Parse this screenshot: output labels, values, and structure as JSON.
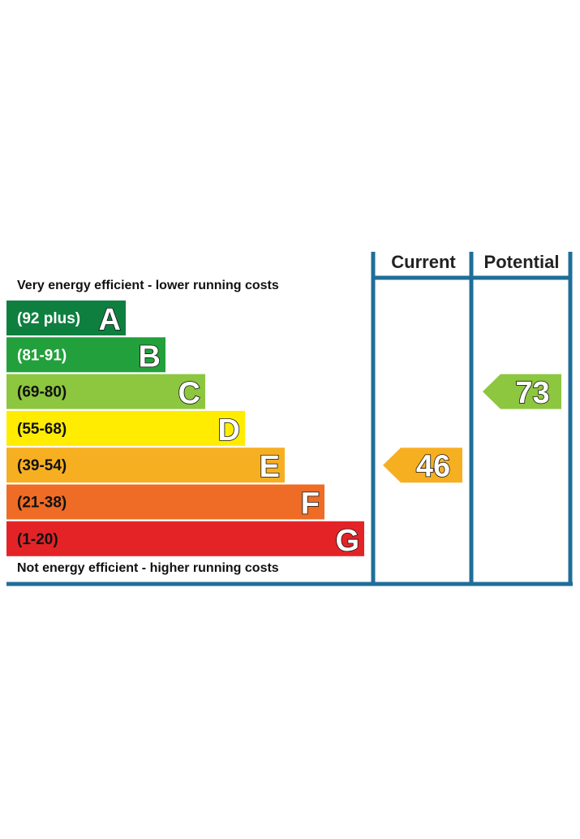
{
  "chart_data": {
    "type": "bar",
    "top_caption": "Very energy efficient - lower running costs",
    "bottom_caption": "Not energy efficient - higher running costs",
    "columns": {
      "current": "Current",
      "potential": "Potential"
    },
    "bands": [
      {
        "letter": "A",
        "range": "(92 plus)",
        "min": 92,
        "max": 100,
        "color": "#0f7f3f",
        "range_text_color": "#ffffff"
      },
      {
        "letter": "B",
        "range": "(81-91)",
        "min": 81,
        "max": 91,
        "color": "#22a03b",
        "range_text_color": "#ffffff"
      },
      {
        "letter": "C",
        "range": "(69-80)",
        "min": 69,
        "max": 80,
        "color": "#8dc63f",
        "range_text_color": "#111111"
      },
      {
        "letter": "D",
        "range": "(55-68)",
        "min": 55,
        "max": 68,
        "color": "#ffec00",
        "range_text_color": "#111111"
      },
      {
        "letter": "E",
        "range": "(39-54)",
        "min": 39,
        "max": 54,
        "color": "#f7af22",
        "range_text_color": "#111111"
      },
      {
        "letter": "F",
        "range": "(21-38)",
        "min": 21,
        "max": 38,
        "color": "#ee6c25",
        "range_text_color": "#111111"
      },
      {
        "letter": "G",
        "range": "(1-20)",
        "min": 1,
        "max": 20,
        "color": "#e42327",
        "range_text_color": "#111111"
      }
    ],
    "ratings": [
      {
        "name": "Current",
        "value": 46,
        "band": "E",
        "color": "#f7af22"
      },
      {
        "name": "Potential",
        "value": 73,
        "band": "C",
        "color": "#8dc63f"
      }
    ],
    "frame_color": "#1f6e99"
  }
}
